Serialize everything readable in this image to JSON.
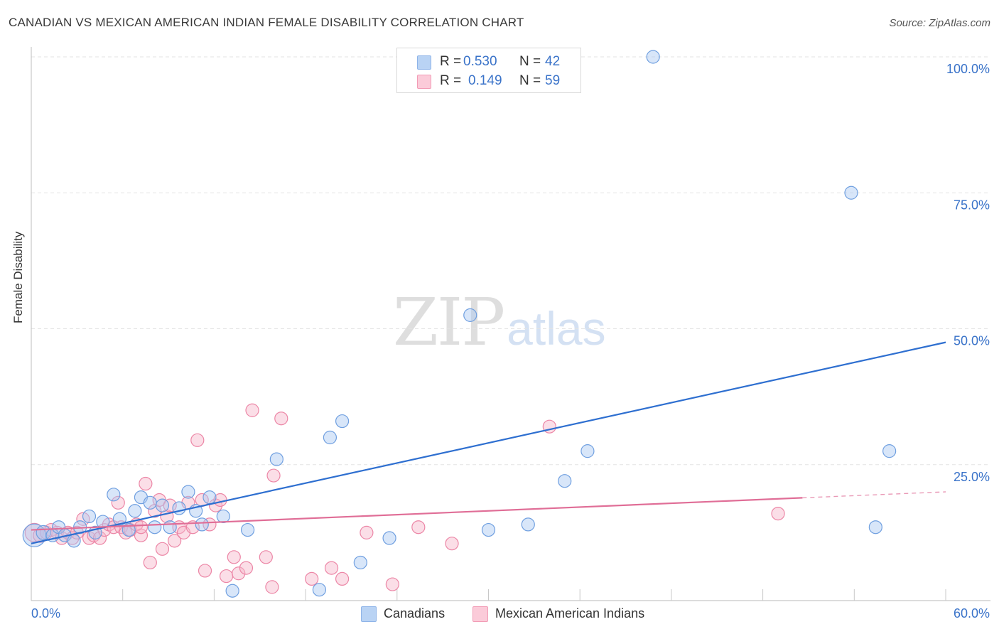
{
  "title": "CANADIAN VS MEXICAN AMERICAN INDIAN FEMALE DISABILITY CORRELATION CHART",
  "source": "Source: ZipAtlas.com",
  "watermark": {
    "zip": "ZIP",
    "atlas": "atlas"
  },
  "legend": {
    "rows": [
      {
        "r_label": "R =",
        "r_value": "0.530",
        "n_label": "N =",
        "n_value": "42",
        "color": "#a9c8f2"
      },
      {
        "r_label": "R =",
        "r_value": "0.149",
        "n_label": "N =",
        "n_value": "59",
        "color": "#f7b6ca"
      }
    ]
  },
  "bottom_legend": [
    {
      "label": "Canadians",
      "color": "#b9d3f4"
    },
    {
      "label": "Mexican American Indians",
      "color": "#fbcbd9"
    }
  ],
  "colors": {
    "blue_fill": "#a9c8f2",
    "blue_stroke": "#6f9fe0",
    "blue_line": "#2e6fd0",
    "pink_fill": "#f7b6ca",
    "pink_stroke": "#ec86a6",
    "pink_line": "#e06e97",
    "tick_text": "#3a73c9",
    "grid": "#e3e3e3"
  },
  "chart_data": {
    "type": "scatter",
    "title": "CANADIAN VS MEXICAN AMERICAN INDIAN FEMALE DISABILITY CORRELATION CHART",
    "xlabel": "",
    "ylabel": "Female Disability",
    "xlim": [
      0,
      60
    ],
    "ylim": [
      0,
      100
    ],
    "x_tick_labels": [
      {
        "value": 0,
        "label": "0.0%"
      },
      {
        "value": 60,
        "label": "60.0%"
      }
    ],
    "x_minor_ticks": [
      6,
      12,
      18,
      24,
      30,
      36,
      42,
      48,
      54,
      60
    ],
    "y_ticks": [
      {
        "value": 25,
        "label": "25.0%"
      },
      {
        "value": 50,
        "label": "50.0%"
      },
      {
        "value": 75,
        "label": "75.0%"
      },
      {
        "value": 100,
        "label": "100.0%"
      }
    ],
    "series": [
      {
        "name": "Canadians",
        "r": 0.53,
        "n": 42,
        "trend": {
          "x0": 0,
          "y0": 10.5,
          "x1": 60,
          "y1": 47.5,
          "dash_from": null
        },
        "points": [
          [
            0.2,
            12.0,
            16
          ],
          [
            0.8,
            12.5,
            10
          ],
          [
            1.4,
            12.0,
            9
          ],
          [
            1.8,
            13.5,
            9
          ],
          [
            2.2,
            12.0,
            9
          ],
          [
            2.8,
            11.0,
            9
          ],
          [
            3.2,
            13.5,
            9
          ],
          [
            3.8,
            15.5,
            9
          ],
          [
            4.2,
            12.5,
            9
          ],
          [
            4.7,
            14.5,
            9
          ],
          [
            5.4,
            19.5,
            9
          ],
          [
            5.8,
            15.0,
            9
          ],
          [
            6.4,
            13.0,
            9
          ],
          [
            6.8,
            16.5,
            9
          ],
          [
            7.2,
            19.0,
            9
          ],
          [
            7.8,
            18.0,
            9
          ],
          [
            8.1,
            13.5,
            9
          ],
          [
            8.6,
            17.5,
            9
          ],
          [
            9.1,
            13.5,
            9
          ],
          [
            9.7,
            17.0,
            9
          ],
          [
            10.3,
            20.0,
            9
          ],
          [
            10.8,
            16.5,
            9
          ],
          [
            11.2,
            14.0,
            9
          ],
          [
            11.7,
            19.0,
            9
          ],
          [
            12.6,
            15.5,
            9
          ],
          [
            13.2,
            1.8,
            9
          ],
          [
            14.2,
            13.0,
            9
          ],
          [
            16.1,
            26.0,
            9
          ],
          [
            18.9,
            2.0,
            9
          ],
          [
            19.6,
            30.0,
            9
          ],
          [
            20.4,
            33.0,
            9
          ],
          [
            21.6,
            7.0,
            9
          ],
          [
            23.5,
            11.5,
            9
          ],
          [
            28.8,
            52.5,
            9
          ],
          [
            30.0,
            13.0,
            9
          ],
          [
            32.6,
            14.0,
            9
          ],
          [
            35.0,
            22.0,
            9
          ],
          [
            36.5,
            27.5,
            9
          ],
          [
            40.8,
            100.0,
            9
          ],
          [
            53.8,
            75.0,
            9
          ],
          [
            55.4,
            13.5,
            9
          ],
          [
            56.3,
            27.5,
            9
          ]
        ]
      },
      {
        "name": "Mexican American Indians",
        "r": 0.149,
        "n": 59,
        "trend": {
          "x0": 0,
          "y0": 13.0,
          "x1": 60,
          "y1": 20.0,
          "dash_from": 50.6
        },
        "points": [
          [
            0.2,
            12.5,
            13
          ],
          [
            0.6,
            12.0,
            10
          ],
          [
            1.0,
            12.5,
            9
          ],
          [
            1.3,
            13.0,
            9
          ],
          [
            1.7,
            12.5,
            9
          ],
          [
            2.0,
            11.5,
            9
          ],
          [
            2.4,
            12.5,
            9
          ],
          [
            2.7,
            11.5,
            9
          ],
          [
            3.0,
            12.5,
            9
          ],
          [
            3.4,
            15.0,
            9
          ],
          [
            3.8,
            11.5,
            9
          ],
          [
            4.1,
            12.0,
            9
          ],
          [
            4.5,
            11.5,
            9
          ],
          [
            4.8,
            13.0,
            9
          ],
          [
            5.1,
            14.0,
            9
          ],
          [
            5.4,
            13.5,
            9
          ],
          [
            5.7,
            18.0,
            9
          ],
          [
            5.9,
            13.5,
            9
          ],
          [
            6.2,
            12.5,
            9
          ],
          [
            6.5,
            13.0,
            9
          ],
          [
            6.9,
            14.0,
            9
          ],
          [
            7.2,
            12.0,
            9
          ],
          [
            7.5,
            21.5,
            9
          ],
          [
            7.8,
            7.0,
            9
          ],
          [
            8.1,
            16.5,
            9
          ],
          [
            8.4,
            18.5,
            9
          ],
          [
            8.6,
            9.5,
            9
          ],
          [
            8.9,
            15.5,
            9
          ],
          [
            9.1,
            17.5,
            9
          ],
          [
            9.4,
            11.0,
            9
          ],
          [
            9.7,
            13.5,
            9
          ],
          [
            10.0,
            12.5,
            9
          ],
          [
            10.3,
            18.0,
            9
          ],
          [
            10.6,
            13.5,
            9
          ],
          [
            10.9,
            29.5,
            9
          ],
          [
            11.2,
            18.5,
            9
          ],
          [
            11.4,
            5.5,
            9
          ],
          [
            11.7,
            14.0,
            9
          ],
          [
            12.1,
            17.5,
            9
          ],
          [
            12.4,
            18.5,
            9
          ],
          [
            12.8,
            4.5,
            9
          ],
          [
            13.3,
            8.0,
            9
          ],
          [
            13.6,
            5.0,
            9
          ],
          [
            14.1,
            6.0,
            9
          ],
          [
            14.5,
            35.0,
            9
          ],
          [
            15.4,
            8.0,
            9
          ],
          [
            15.8,
            2.5,
            9
          ],
          [
            16.4,
            33.5,
            9
          ],
          [
            18.4,
            4.0,
            9
          ],
          [
            19.7,
            6.0,
            9
          ],
          [
            20.4,
            4.0,
            9
          ],
          [
            22.0,
            12.5,
            9
          ],
          [
            23.7,
            3.0,
            9
          ],
          [
            25.4,
            13.5,
            9
          ],
          [
            27.6,
            10.5,
            9
          ],
          [
            34.0,
            32.0,
            9
          ],
          [
            49.0,
            16.0,
            9
          ],
          [
            15.9,
            23.0,
            9
          ],
          [
            7.2,
            13.5,
            9
          ]
        ]
      }
    ]
  }
}
